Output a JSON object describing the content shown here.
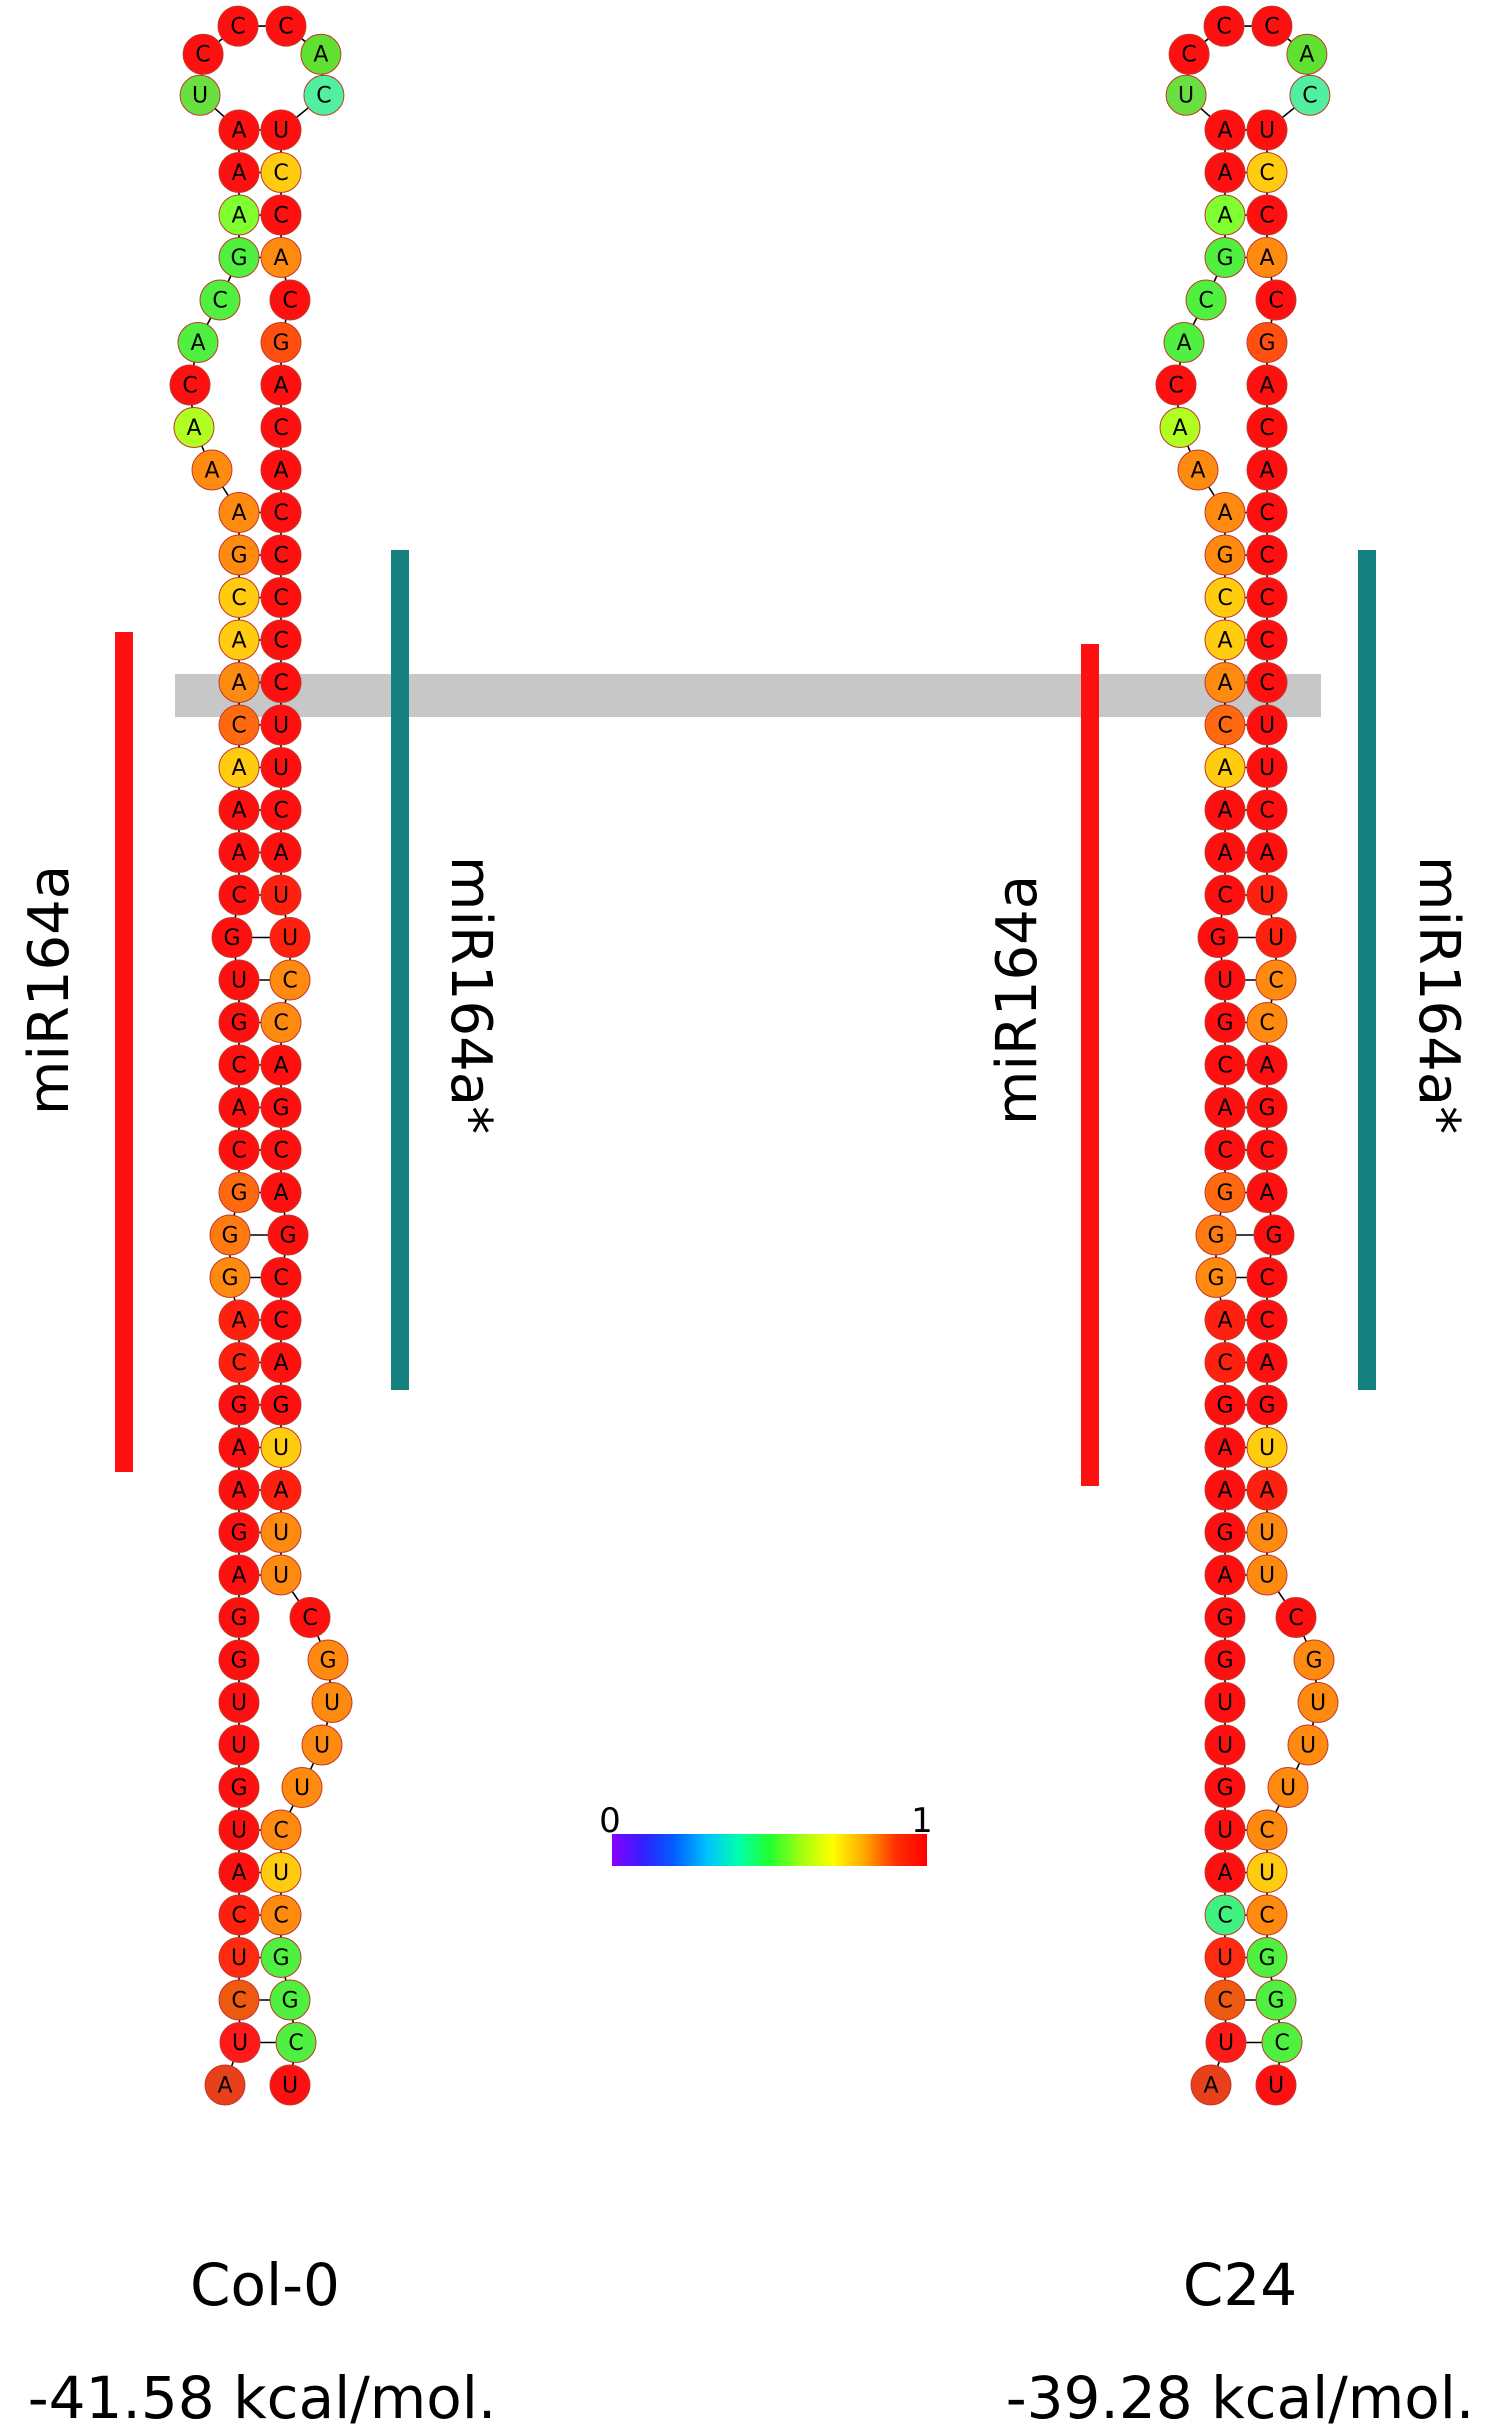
{
  "structures": [
    {
      "id": "col0",
      "name": "Col-0",
      "energy": "-41.58 kcal/mol.",
      "mirna_label": "miR164a",
      "mirna_star_label": "miR164a*",
      "left": [
        "A",
        "U",
        "C",
        "U",
        "C",
        "A",
        "U",
        "G",
        "U",
        "U",
        "G",
        "G",
        "A",
        "G",
        "A",
        "A",
        "G",
        "C",
        "A",
        "G",
        "G",
        "G",
        "C",
        "A",
        "C",
        "G",
        "U",
        "G",
        "C",
        "A",
        "A",
        "A",
        "C",
        "A",
        "A",
        "C",
        "G",
        "A",
        "A",
        "A",
        "C",
        "A",
        "C",
        "G",
        "A",
        "A",
        "A"
      ],
      "right": [
        "U",
        "C",
        "C",
        "A",
        "C",
        "G",
        "A",
        "C",
        "A",
        "C",
        "C",
        "C",
        "C",
        "C",
        "U",
        "U",
        "C",
        "A",
        "U",
        "U",
        "C",
        "C",
        "A",
        "G",
        "C",
        "A",
        "G",
        "C",
        "C",
        "A",
        "G",
        "U",
        "A",
        "U",
        "U",
        "C",
        "G",
        "U",
        "U",
        "U",
        "C",
        "U",
        "C",
        "G",
        "G",
        "C",
        "U"
      ],
      "loop": [
        "U",
        "C",
        "C",
        "C",
        "A",
        "C"
      ],
      "left_colors": [
        "#e8401a",
        "#ff1a1a",
        "#ee5a10",
        "#ff2a10",
        "#ff2010",
        "#ff1010",
        "#ff1010",
        "#ff1010",
        "#ff1010",
        "#ff1010",
        "#ff1010",
        "#ff1010",
        "#ff1010",
        "#ff1010",
        "#ff1010",
        "#ff1010",
        "#ff1010",
        "#ff2010",
        "#ff2010",
        "#ff8a10",
        "#ff7a10",
        "#ff6a10",
        "#ff1010",
        "#ff1010",
        "#ff1010",
        "#ff1010",
        "#ff1010",
        "#ff1010",
        "#ff1010",
        "#ff1010",
        "#ff1010",
        "#ffcc10",
        "#ff6a10",
        "#ff8a10",
        "#ffcc10",
        "#ffcc10",
        "#ff8a10",
        "#ff8a10",
        "#ff8a10",
        "#b0ff20",
        "#ff1010",
        "#50f040",
        "#50f040",
        "#50f040",
        "#80ff30",
        "#ff1010",
        "#ff1010"
      ],
      "right_colors": [
        "#ff1010",
        "#ffcc10",
        "#ff1010",
        "#ff8a10",
        "#ff1010",
        "#ff5010",
        "#ff1010",
        "#ff1010",
        "#ff1010",
        "#ff1010",
        "#ff1010",
        "#ff1010",
        "#ff1010",
        "#ff1010",
        "#ff1010",
        "#ff1010",
        "#ff1010",
        "#ff1010",
        "#ff2010",
        "#ff2010",
        "#ff8a10",
        "#ff8a10",
        "#ff1010",
        "#ff1010",
        "#ff1010",
        "#ff1010",
        "#ff1010",
        "#ff1010",
        "#ff1010",
        "#ff1010",
        "#ff1010",
        "#ffcc10",
        "#ff2010",
        "#ff8a10",
        "#ff8a10",
        "#ff1010",
        "#ff8a10",
        "#ff8a10",
        "#ff8a10",
        "#ff8a10",
        "#ff8a10",
        "#ffcc10",
        "#ff8a10",
        "#50f040",
        "#50f040",
        "#50f040",
        "#ff1010"
      ],
      "loop_colors": [
        "#6ae040",
        "#ff1010",
        "#ff1010",
        "#ff1010",
        "#60e030",
        "#50f0a0"
      ]
    },
    {
      "id": "c24",
      "name": "C24",
      "energy": "-39.28 kcal/mol.",
      "mirna_label": "miR164a",
      "mirna_star_label": "miR164a*",
      "left": [
        "A",
        "U",
        "C",
        "U",
        "C",
        "A",
        "U",
        "G",
        "U",
        "U",
        "G",
        "G",
        "A",
        "G",
        "A",
        "A",
        "G",
        "C",
        "A",
        "G",
        "G",
        "G",
        "C",
        "A",
        "C",
        "G",
        "U",
        "G",
        "C",
        "A",
        "A",
        "A",
        "C",
        "A",
        "A",
        "C",
        "G",
        "A",
        "A",
        "A",
        "C",
        "A",
        "C",
        "G",
        "A",
        "A",
        "A"
      ],
      "right": [
        "U",
        "C",
        "C",
        "A",
        "C",
        "G",
        "A",
        "C",
        "A",
        "C",
        "C",
        "C",
        "C",
        "C",
        "U",
        "U",
        "C",
        "A",
        "U",
        "U",
        "C",
        "C",
        "A",
        "G",
        "C",
        "A",
        "G",
        "C",
        "C",
        "A",
        "G",
        "U",
        "A",
        "U",
        "U",
        "C",
        "G",
        "U",
        "U",
        "U",
        "C",
        "U",
        "C",
        "G",
        "G",
        "C",
        "U"
      ],
      "loop": [
        "U",
        "C",
        "C",
        "C",
        "A",
        "C"
      ],
      "left_colors": [
        "#e8401a",
        "#ff1a1a",
        "#ee5a10",
        "#ff2a10",
        "#40f080",
        "#ff1010",
        "#ff1010",
        "#ff1010",
        "#ff1010",
        "#ff1010",
        "#ff1010",
        "#ff1010",
        "#ff1010",
        "#ff1010",
        "#ff1010",
        "#ff1010",
        "#ff1010",
        "#ff2010",
        "#ff2010",
        "#ff8a10",
        "#ff7a10",
        "#ff6a10",
        "#ff1010",
        "#ff1010",
        "#ff1010",
        "#ff1010",
        "#ff1010",
        "#ff1010",
        "#ff1010",
        "#ff1010",
        "#ff1010",
        "#ffcc10",
        "#ff6a10",
        "#ff8a10",
        "#ffcc10",
        "#ffcc10",
        "#ff8a10",
        "#ff8a10",
        "#ff8a10",
        "#b0ff20",
        "#ff1010",
        "#50f040",
        "#50f040",
        "#50f040",
        "#80ff30",
        "#ff1010",
        "#ff1010"
      ],
      "right_colors": [
        "#ff1010",
        "#ffcc10",
        "#ff1010",
        "#ff8a10",
        "#ff1010",
        "#ff5010",
        "#ff1010",
        "#ff1010",
        "#ff1010",
        "#ff1010",
        "#ff1010",
        "#ff1010",
        "#ff1010",
        "#ff1010",
        "#ff1010",
        "#ff1010",
        "#ff1010",
        "#ff1010",
        "#ff2010",
        "#ff2010",
        "#ff8a10",
        "#ff8a10",
        "#ff1010",
        "#ff1010",
        "#ff1010",
        "#ff1010",
        "#ff1010",
        "#ff1010",
        "#ff1010",
        "#ff1010",
        "#ff1010",
        "#ffcc10",
        "#ff2010",
        "#ff8a10",
        "#ff8a10",
        "#ff1010",
        "#ff8a10",
        "#ff8a10",
        "#ff8a10",
        "#ff8a10",
        "#ff8a10",
        "#ffcc10",
        "#ff8a10",
        "#50f040",
        "#50f040",
        "#50f040",
        "#ff1010"
      ],
      "loop_colors": [
        "#6ae040",
        "#ff1010",
        "#ff1010",
        "#ff1010",
        "#60e030",
        "#50f0a0"
      ]
    }
  ],
  "colorbar": {
    "min_label": "0",
    "max_label": "1",
    "colors": [
      "#8a00ff",
      "#3020ff",
      "#0060ff",
      "#00c0ff",
      "#00ffb0",
      "#20ff30",
      "#a0ff10",
      "#ffff00",
      "#ffaa00",
      "#ff3000",
      "#ff0000"
    ]
  },
  "colors": {
    "mirna": "#ff1010",
    "mirna_star": "#148080",
    "highlight": "#b4b4b4"
  }
}
